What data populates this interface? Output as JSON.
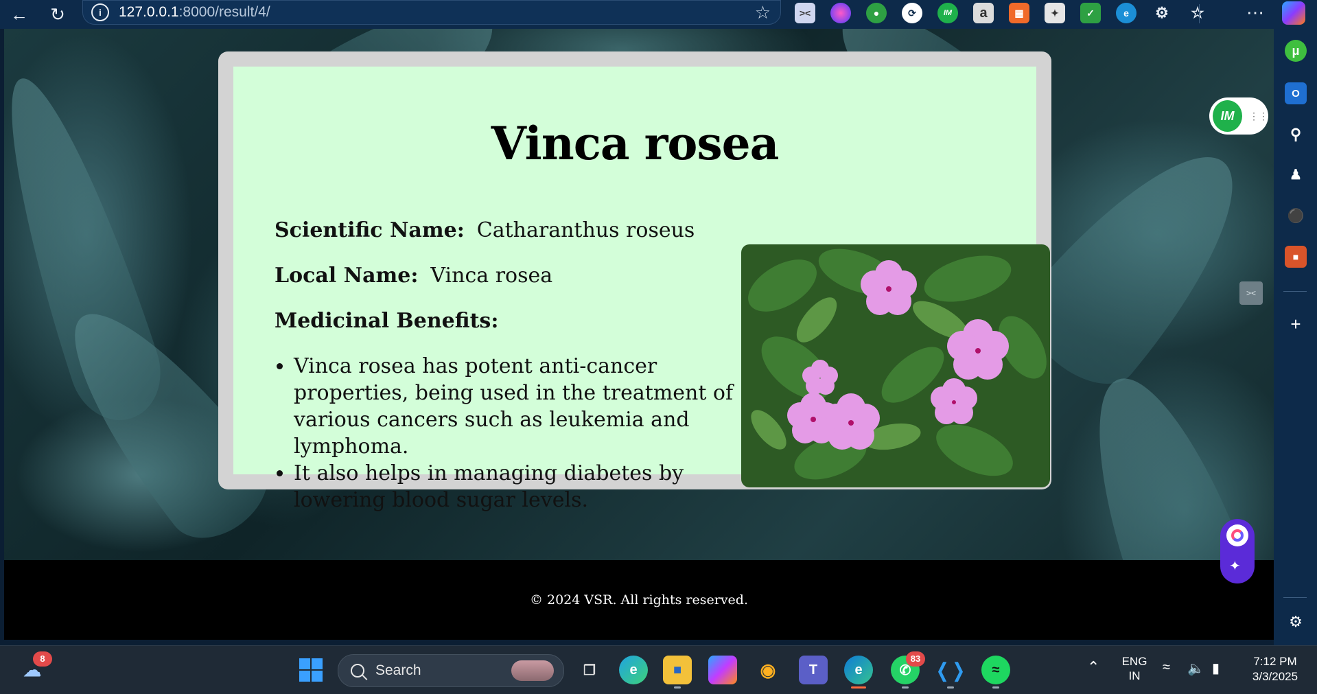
{
  "browser": {
    "url_host": "127.0.0.1",
    "url_path": ":8000/result/4/"
  },
  "page": {
    "title": "Vinca rosea",
    "scientific_label": "Scientific Name:",
    "scientific_value": "Catharanthus roseus",
    "local_label": "Local Name:",
    "local_value": "Vinca rosea",
    "benefits_label": "Medicinal Benefits:",
    "benefits": [
      "Vinca rosea has potent anti-cancer properties, being used in the treatment of various cancers such as leukemia and lymphoma.",
      "It also helps in managing diabetes by lowering blood sugar levels."
    ],
    "footer": "© 2024 VSR. All rights reserved."
  },
  "widgets": {
    "im_logo": "IM"
  },
  "taskbar": {
    "search_label": "Search",
    "weather_badge": "8",
    "whatsapp_badge": "83",
    "lang_top": "ENG",
    "lang_bottom": "IN",
    "time": "7:12 PM",
    "date": "3/3/2025"
  },
  "colors": {
    "card_bg": "#d3fed9",
    "card_frame": "#d3d3d3",
    "footer_bg": "#000000",
    "browser_chrome": "#0d2a4a"
  }
}
